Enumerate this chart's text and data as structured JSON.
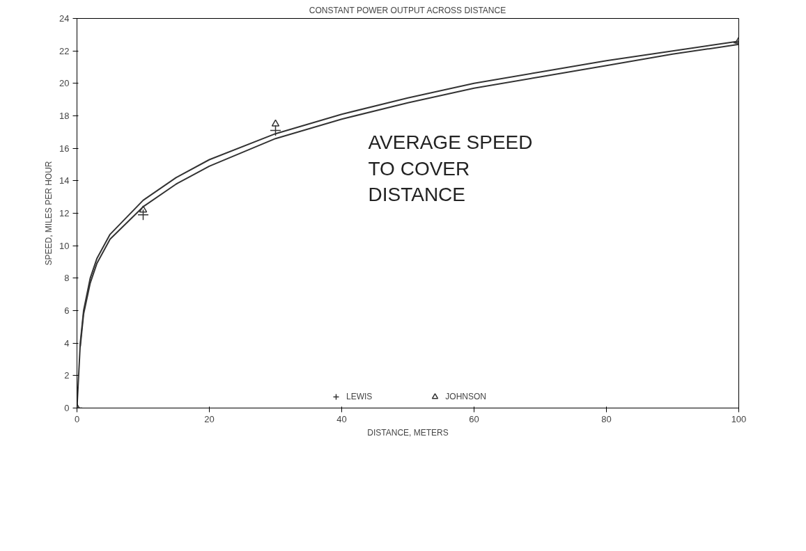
{
  "chart_data": {
    "type": "line",
    "title": "CONSTANT POWER OUTPUT ACROSS DISTANCE",
    "xlabel": "DISTANCE, METERS",
    "ylabel": "SPEED, MILES PER HOUR",
    "annotations": [
      "AVERAGE  SPEED\nTO  COVER\nDISTANCE"
    ],
    "xlim": [
      0,
      100
    ],
    "ylim": [
      0,
      24
    ],
    "xticks": [
      0,
      20,
      40,
      60,
      80,
      100
    ],
    "yticks": [
      0,
      2,
      4,
      6,
      8,
      10,
      12,
      14,
      16,
      18,
      20,
      22,
      24
    ],
    "grid": false,
    "legend": "bottom",
    "line_style": "solid",
    "series": [
      {
        "color": "#333333",
        "marker": "none",
        "x": [
          0,
          0.5,
          1,
          2,
          3,
          5,
          10,
          15,
          20,
          30,
          40,
          50,
          60,
          70,
          80,
          90,
          100
        ],
        "values": [
          0,
          4,
          6,
          8,
          9.2,
          10.7,
          12.8,
          14.2,
          15.3,
          16.9,
          18.1,
          19.1,
          20.0,
          20.7,
          21.4,
          22.0,
          22.6
        ]
      },
      {
        "color": "#333333",
        "marker": "none",
        "x": [
          0.5,
          1,
          2,
          3,
          5,
          10,
          15,
          20,
          30,
          40,
          50,
          60,
          70,
          80,
          90,
          100
        ],
        "values": [
          3.8,
          5.8,
          7.7,
          8.9,
          10.4,
          12.4,
          13.8,
          14.9,
          16.6,
          17.8,
          18.8,
          19.7,
          20.4,
          21.1,
          21.8,
          22.4
        ]
      },
      {
        "type": "scatter",
        "name": "LEWIS",
        "color": "#333333",
        "marker": "cross",
        "x": [
          0,
          10,
          30,
          100
        ],
        "values": [
          0,
          11.9,
          17.1,
          22.5
        ]
      },
      {
        "type": "scatter",
        "name": "JOHNSON",
        "color": "#333333",
        "marker": "triangle",
        "x": [
          0,
          10,
          30,
          100
        ],
        "values": [
          0,
          12.2,
          17.5,
          22.6
        ]
      }
    ]
  }
}
